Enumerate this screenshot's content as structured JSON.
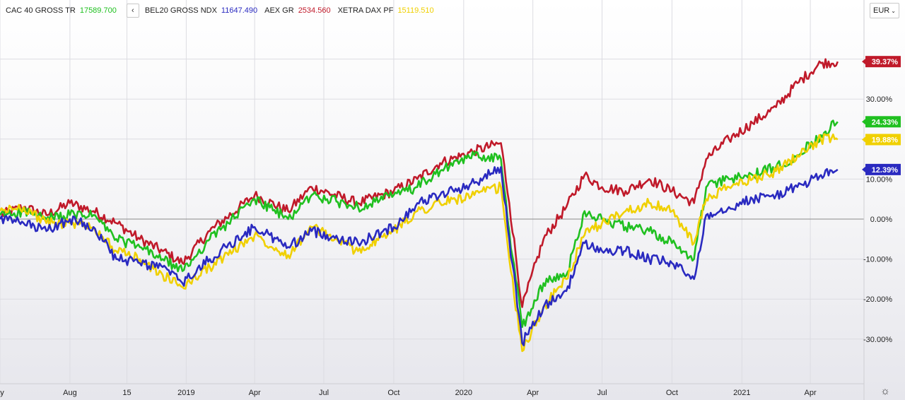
{
  "legend": {
    "items": [
      {
        "name": "CAC 40 GROSS TR",
        "value": "17589.700",
        "color": "#20c020"
      },
      {
        "name": "BEL20 GROSS NDX",
        "value": "11647.490",
        "color": "#2a2ac0"
      },
      {
        "name": "AEX GR",
        "value": "2534.560",
        "color": "#c01a2a"
      },
      {
        "name": "XETRA DAX PF",
        "value": "15119.510",
        "color": "#f0d000"
      }
    ],
    "prev_icon": "‹"
  },
  "currency": "EUR",
  "settings_icon": "☼",
  "chart_data": {
    "type": "line",
    "ylim": [
      -40,
      46
    ],
    "y_ticks": [
      "30.00%",
      "10.00%",
      "0.00%",
      "-10.00%",
      "-20.00%",
      "-30.00%"
    ],
    "y_tick_values": [
      30,
      10,
      0,
      -10,
      -20,
      -30
    ],
    "x_tick_labels": [
      "ay",
      "Aug",
      "15",
      "2019",
      "Apr",
      "Jul",
      "Oct",
      "2020",
      "Apr",
      "Jul",
      "Oct",
      "2021",
      "Apr"
    ],
    "x_tick_dates": [
      "2018-05-01",
      "2018-08-01",
      "2018-10-15",
      "2019-01-01",
      "2019-04-01",
      "2019-07-01",
      "2019-10-01",
      "2020-01-01",
      "2020-04-01",
      "2020-07-01",
      "2020-10-01",
      "2021-01-01",
      "2021-04-01"
    ],
    "x_range": [
      "2018-05-01",
      "2021-05-10"
    ],
    "series": [
      {
        "name": "AEX GR",
        "color": "#c01a2a",
        "last_label": "39.37%",
        "x": [
          "2018-05-01",
          "2018-06-01",
          "2018-07-01",
          "2018-08-01",
          "2018-09-01",
          "2018-10-01",
          "2018-11-01",
          "2018-12-01",
          "2018-12-27",
          "2019-02-01",
          "2019-04-01",
          "2019-05-15",
          "2019-06-15",
          "2019-08-15",
          "2019-10-01",
          "2019-11-01",
          "2019-12-01",
          "2020-01-15",
          "2020-02-19",
          "2020-03-01",
          "2020-03-18",
          "2020-04-15",
          "2020-05-15",
          "2020-06-08",
          "2020-07-01",
          "2020-08-01",
          "2020-09-01",
          "2020-10-01",
          "2020-10-30",
          "2020-11-15",
          "2020-12-15",
          "2021-01-15",
          "2021-02-15",
          "2021-03-15",
          "2021-04-15",
          "2021-05-07"
        ],
        "values": [
          1,
          3,
          1,
          4,
          2,
          -1,
          -5,
          -8,
          -11,
          -3,
          6,
          2,
          8,
          4,
          7,
          10,
          14,
          17,
          19,
          4,
          -22,
          -5,
          3,
          11,
          8,
          7,
          10,
          7,
          4,
          15,
          20,
          24,
          28,
          34,
          39,
          39.37
        ]
      },
      {
        "name": "CAC 40 GROSS TR",
        "color": "#20c020",
        "last_label": "24.33%",
        "x": [
          "2018-05-01",
          "2018-06-01",
          "2018-07-01",
          "2018-08-01",
          "2018-09-01",
          "2018-10-01",
          "2018-11-01",
          "2018-12-01",
          "2018-12-27",
          "2019-02-01",
          "2019-04-01",
          "2019-05-15",
          "2019-06-15",
          "2019-08-15",
          "2019-10-01",
          "2019-11-01",
          "2019-12-01",
          "2020-01-15",
          "2020-02-19",
          "2020-03-01",
          "2020-03-18",
          "2020-04-15",
          "2020-05-15",
          "2020-06-08",
          "2020-07-01",
          "2020-08-01",
          "2020-09-01",
          "2020-10-01",
          "2020-10-30",
          "2020-11-15",
          "2020-12-15",
          "2021-01-15",
          "2021-02-15",
          "2021-03-15",
          "2021-04-15",
          "2021-05-07"
        ],
        "values": [
          1,
          2,
          0,
          1,
          1,
          -5,
          -7,
          -10,
          -13,
          -5,
          5,
          0,
          6,
          3,
          6,
          8,
          12,
          16,
          15,
          -3,
          -27,
          -16,
          -14,
          2,
          0,
          -2,
          -3,
          -6,
          -10,
          8,
          10,
          11,
          13,
          16,
          21,
          24.33
        ]
      },
      {
        "name": "XETRA DAX PF",
        "color": "#f0d000",
        "last_label": "19.88%",
        "x": [
          "2018-05-01",
          "2018-06-01",
          "2018-07-01",
          "2018-08-01",
          "2018-09-01",
          "2018-10-01",
          "2018-11-01",
          "2018-12-01",
          "2018-12-27",
          "2019-02-01",
          "2019-04-01",
          "2019-05-15",
          "2019-06-15",
          "2019-08-15",
          "2019-10-01",
          "2019-11-01",
          "2019-12-01",
          "2020-01-15",
          "2020-02-19",
          "2020-03-01",
          "2020-03-18",
          "2020-04-15",
          "2020-05-15",
          "2020-06-08",
          "2020-07-01",
          "2020-08-01",
          "2020-09-01",
          "2020-10-01",
          "2020-10-30",
          "2020-11-15",
          "2020-12-15",
          "2021-01-15",
          "2021-02-15",
          "2021-03-15",
          "2021-04-15",
          "2021-05-07"
        ],
        "values": [
          2,
          3,
          -1,
          -1,
          -2,
          -8,
          -10,
          -14,
          -17,
          -12,
          -4,
          -9,
          -2,
          -8,
          -3,
          2,
          4,
          6,
          8,
          -10,
          -33,
          -22,
          -15,
          -4,
          -1,
          2,
          4,
          2,
          -6,
          5,
          8,
          10,
          12,
          16,
          20,
          19.88
        ]
      },
      {
        "name": "BEL20 GROSS NDX",
        "color": "#2a2ac0",
        "last_label": "12.39%",
        "x": [
          "2018-05-01",
          "2018-06-01",
          "2018-07-01",
          "2018-08-01",
          "2018-09-01",
          "2018-10-01",
          "2018-11-01",
          "2018-12-01",
          "2018-12-27",
          "2019-02-01",
          "2019-04-01",
          "2019-05-15",
          "2019-06-15",
          "2019-08-15",
          "2019-10-01",
          "2019-11-01",
          "2019-12-01",
          "2020-01-15",
          "2020-02-19",
          "2020-03-01",
          "2020-03-18",
          "2020-04-15",
          "2020-05-15",
          "2020-06-08",
          "2020-07-01",
          "2020-08-01",
          "2020-09-01",
          "2020-10-01",
          "2020-10-30",
          "2020-11-15",
          "2020-12-15",
          "2021-01-15",
          "2021-02-15",
          "2021-03-15",
          "2021-04-15",
          "2021-05-07"
        ],
        "values": [
          0,
          -1,
          -3,
          0,
          -2,
          -10,
          -11,
          -12,
          -16,
          -10,
          -2,
          -7,
          -3,
          -6,
          -2,
          4,
          6,
          9,
          13,
          -5,
          -31,
          -22,
          -18,
          -6,
          -8,
          -8,
          -10,
          -11,
          -15,
          1,
          3,
          5,
          6,
          8,
          11,
          12.39
        ]
      }
    ]
  }
}
